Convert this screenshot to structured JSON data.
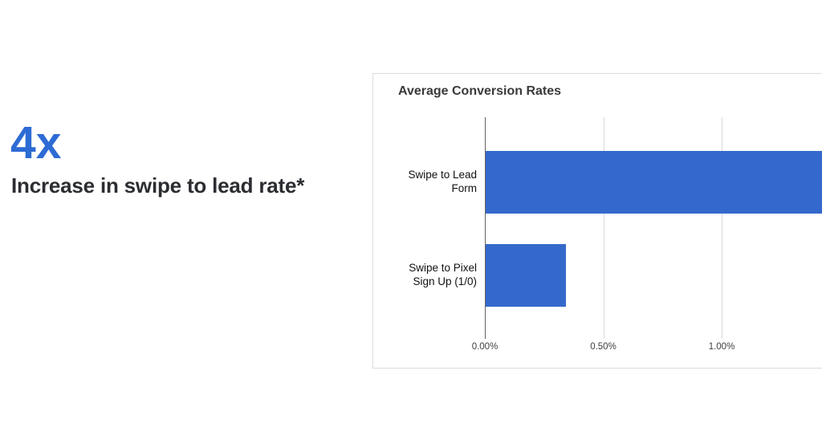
{
  "page": {
    "headline": "4x",
    "subheadline": "Increase in swipe to lead rate*",
    "accent_color": "#2d6bd4",
    "text_color": "#2b2d31"
  },
  "chart_data": {
    "type": "bar",
    "orientation": "horizontal",
    "title": "Average Conversion Rates",
    "categories": [
      "Swipe to Lead Form",
      "Swipe to Pixel Sign Up (1/0)"
    ],
    "category_lines": [
      [
        "Swipe to Lead",
        "Form"
      ],
      [
        "Swipe to Pixel",
        "Sign Up (1/0)"
      ]
    ],
    "series": [
      {
        "name": "Average conversion rate",
        "values": [
          1.45,
          0.34
        ]
      }
    ],
    "value_unit": "%",
    "x_ticks": [
      {
        "label": "0.00%",
        "value": 0.0
      },
      {
        "label": "0.50%",
        "value": 0.5
      },
      {
        "label": "1.00%",
        "value": 1.0
      }
    ],
    "xlim": [
      0,
      1.43
    ],
    "bar_color": "#3469cb",
    "grid": "vertical-only",
    "legend": "none",
    "annotation": "First bar runs off the right edge of the image (clipped)"
  }
}
